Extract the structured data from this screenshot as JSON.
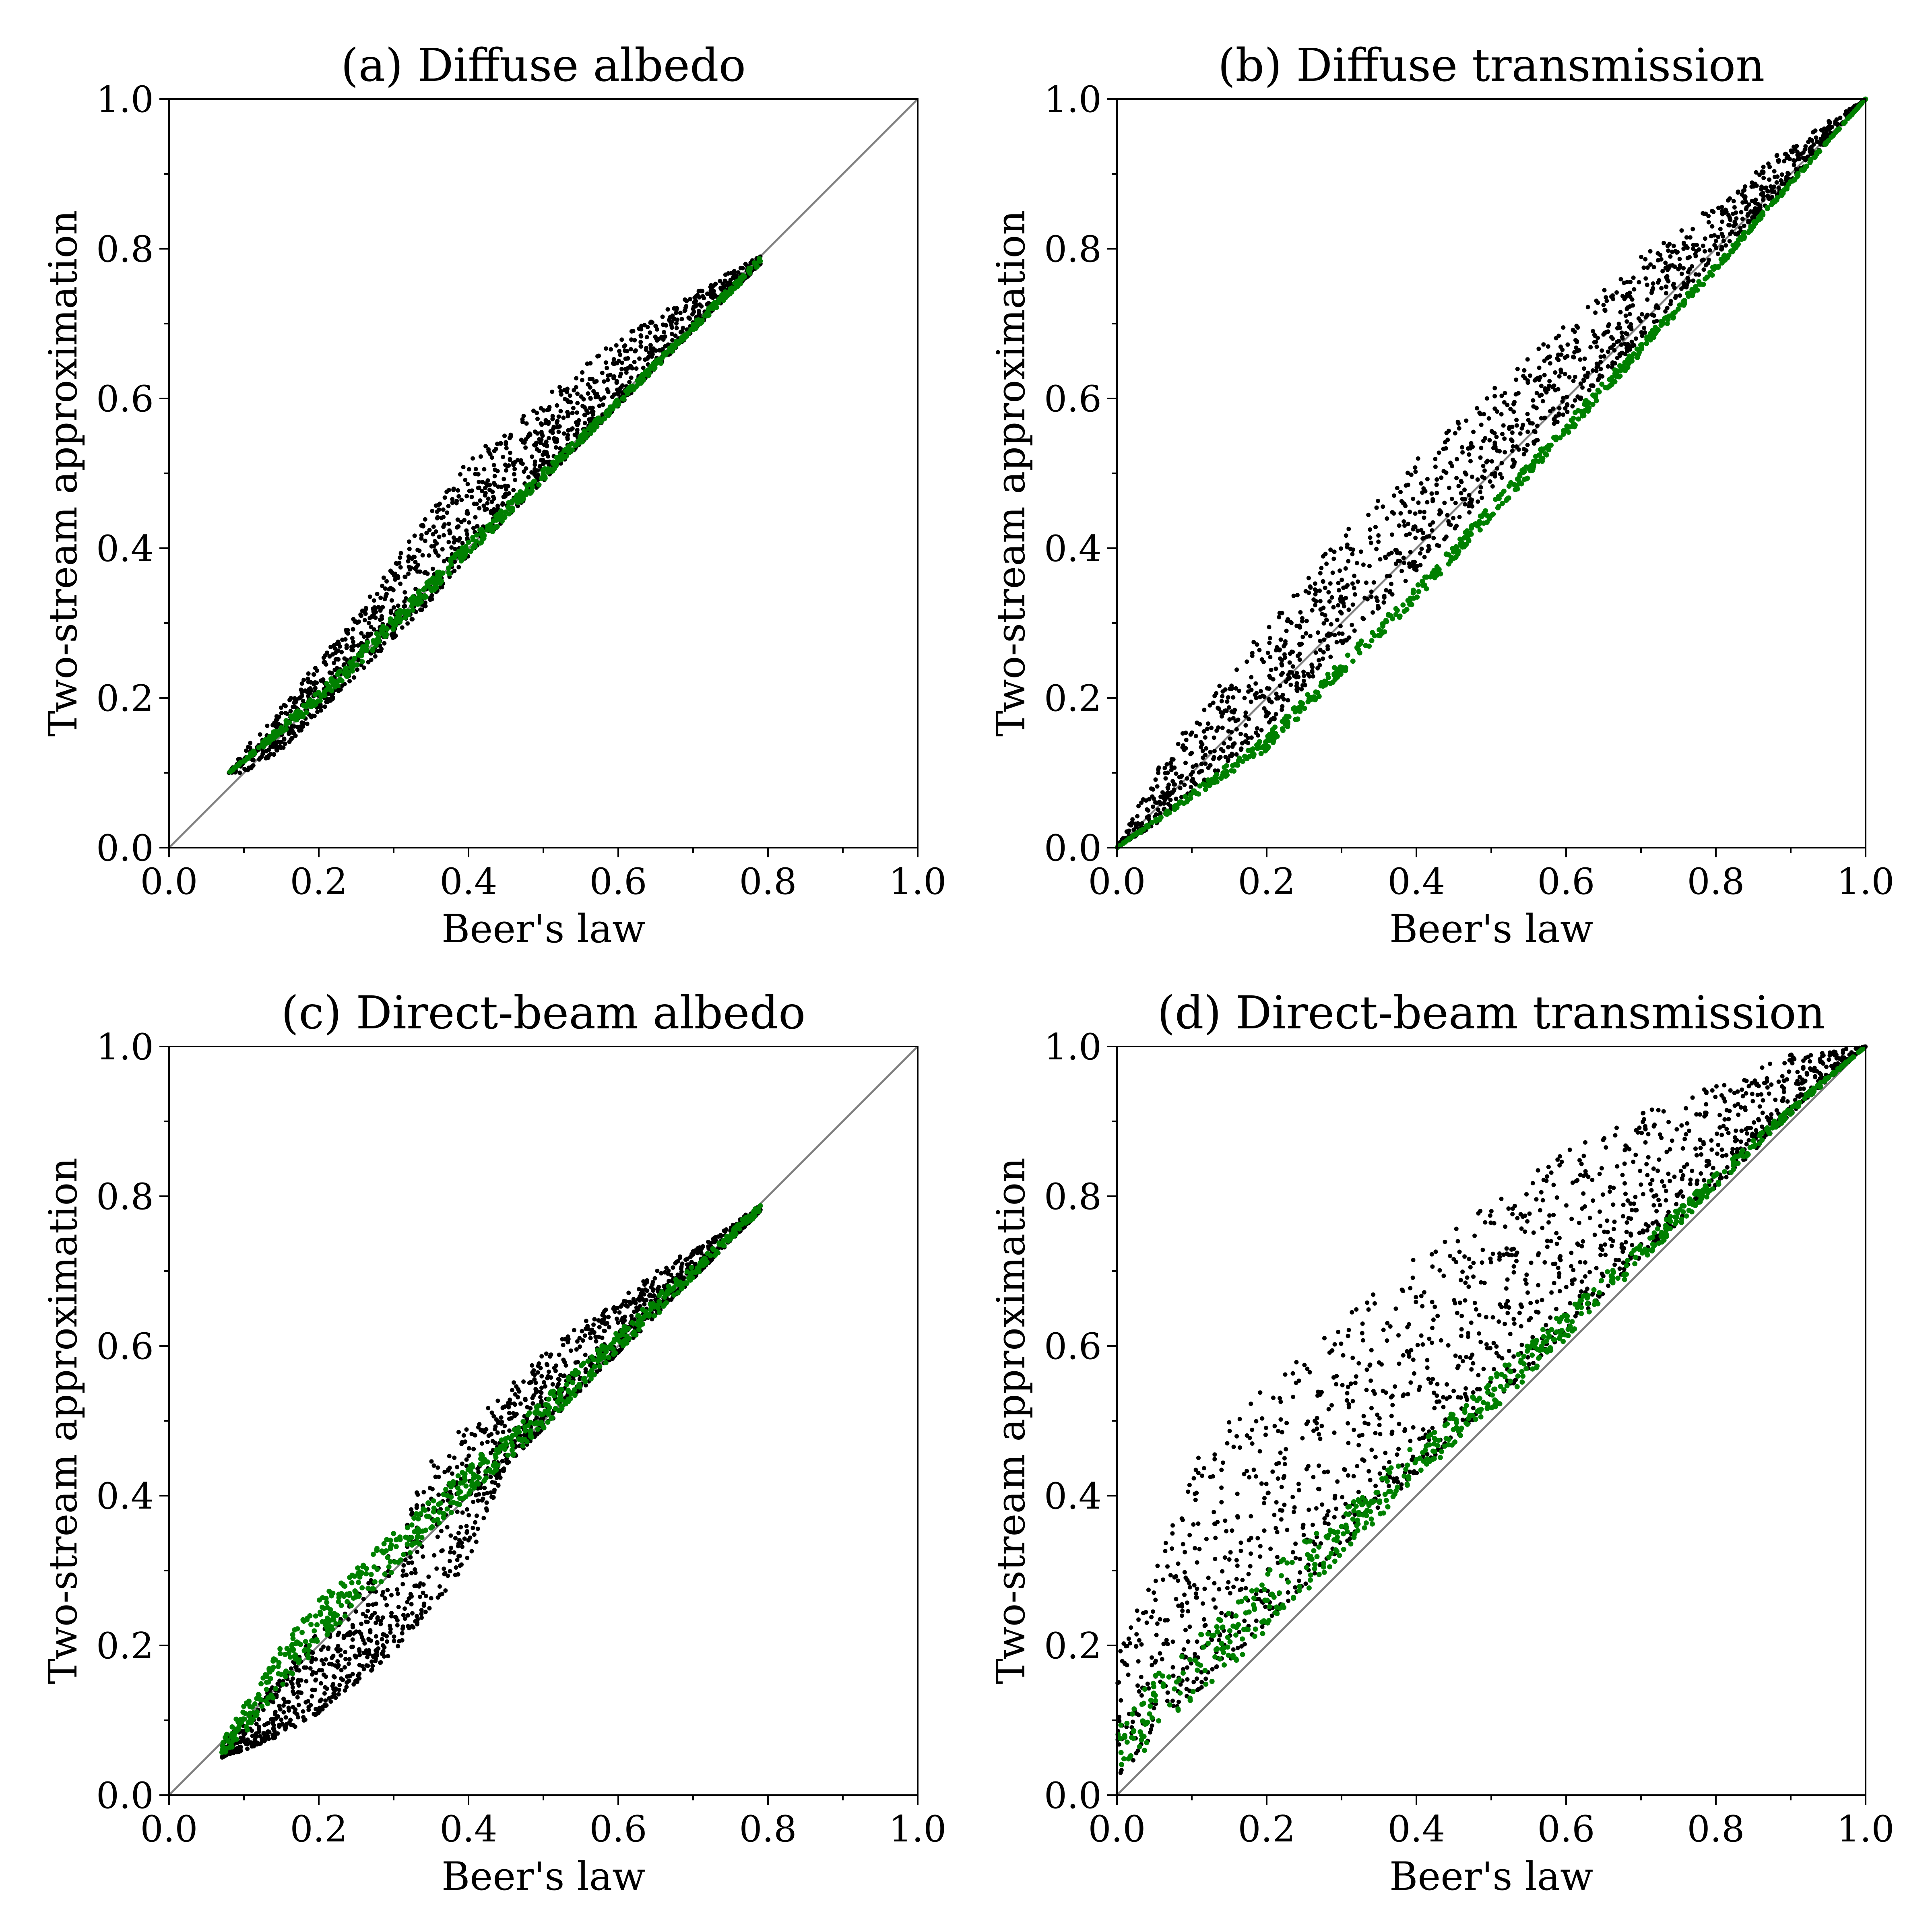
{
  "chart_data": [
    {
      "type": "scatter",
      "title": "(a) Diffuse albedo",
      "xlabel": "Beer's law",
      "ylabel": "Two-stream approximation",
      "xlim": [
        0.0,
        1.0
      ],
      "ylim": [
        0.0,
        1.0
      ],
      "x_ticks": [
        "0.0",
        "0.2",
        "0.4",
        "0.6",
        "0.8",
        "1.0"
      ],
      "y_ticks": [
        "0.0",
        "0.2",
        "0.4",
        "0.6",
        "0.8",
        "1.0"
      ],
      "grid": false,
      "reference_line": {
        "x": [
          0.0,
          1.0
        ],
        "y": [
          0.0,
          1.0
        ],
        "color": "#808080"
      },
      "series": [
        {
          "color": "#000000",
          "x_range": [
            0.08,
            0.79
          ],
          "envelope_x": [
            0.08,
            0.1,
            0.15,
            0.2,
            0.25,
            0.3,
            0.35,
            0.4,
            0.45,
            0.5,
            0.55,
            0.6,
            0.65,
            0.7,
            0.75,
            0.79
          ],
          "envelope_upper": [
            0.1,
            0.13,
            0.19,
            0.25,
            0.31,
            0.38,
            0.45,
            0.52,
            0.56,
            0.6,
            0.64,
            0.68,
            0.71,
            0.74,
            0.77,
            0.79
          ],
          "envelope_lower": [
            0.1,
            0.1,
            0.13,
            0.18,
            0.23,
            0.28,
            0.33,
            0.39,
            0.44,
            0.49,
            0.54,
            0.59,
            0.64,
            0.69,
            0.74,
            0.78
          ]
        },
        {
          "color": "#008000",
          "x_range": [
            0.08,
            0.79
          ],
          "envelope_x": [
            0.08,
            0.2,
            0.4,
            0.6,
            0.79
          ],
          "envelope_upper": [
            0.1,
            0.21,
            0.41,
            0.6,
            0.79
          ],
          "envelope_lower": [
            0.1,
            0.19,
            0.39,
            0.59,
            0.78
          ]
        }
      ]
    },
    {
      "type": "scatter",
      "title": "(b) Diffuse transmission",
      "xlabel": "Beer's law",
      "ylabel": "Two-stream approximation",
      "xlim": [
        0.0,
        1.0
      ],
      "ylim": [
        0.0,
        1.0
      ],
      "x_ticks": [
        "0.0",
        "0.2",
        "0.4",
        "0.6",
        "0.8",
        "1.0"
      ],
      "y_ticks": [
        "0.0",
        "0.2",
        "0.4",
        "0.6",
        "0.8",
        "1.0"
      ],
      "grid": false,
      "reference_line": {
        "x": [
          0.0,
          1.0
        ],
        "y": [
          0.0,
          1.0
        ],
        "color": "#808080"
      },
      "series": [
        {
          "color": "#000000",
          "x_range": [
            0.0,
            1.0
          ],
          "envelope_x": [
            0.0,
            0.05,
            0.1,
            0.2,
            0.3,
            0.4,
            0.5,
            0.6,
            0.7,
            0.8,
            0.9,
            1.0
          ],
          "envelope_upper": [
            0.0,
            0.1,
            0.17,
            0.3,
            0.42,
            0.52,
            0.61,
            0.7,
            0.79,
            0.86,
            0.94,
            1.0
          ],
          "envelope_lower": [
            0.0,
            0.03,
            0.07,
            0.16,
            0.27,
            0.37,
            0.48,
            0.58,
            0.68,
            0.79,
            0.89,
            1.0
          ]
        },
        {
          "color": "#008000",
          "x_range": [
            0.0,
            1.0
          ],
          "envelope_x": [
            0.0,
            0.2,
            0.4,
            0.6,
            0.8,
            1.0
          ],
          "envelope_upper": [
            0.0,
            0.15,
            0.35,
            0.57,
            0.78,
            1.0
          ],
          "envelope_lower": [
            0.0,
            0.13,
            0.33,
            0.55,
            0.77,
            1.0
          ]
        }
      ]
    },
    {
      "type": "scatter",
      "title": "(c) Direct-beam albedo",
      "xlabel": "Beer's law",
      "ylabel": "Two-stream approximation",
      "xlim": [
        0.0,
        1.0
      ],
      "ylim": [
        0.0,
        1.0
      ],
      "x_ticks": [
        "0.0",
        "0.2",
        "0.4",
        "0.6",
        "0.8",
        "1.0"
      ],
      "y_ticks": [
        "0.0",
        "0.2",
        "0.4",
        "0.6",
        "0.8",
        "1.0"
      ],
      "grid": false,
      "reference_line": {
        "x": [
          0.0,
          1.0
        ],
        "y": [
          0.0,
          1.0
        ],
        "color": "#808080"
      },
      "series": [
        {
          "color": "#000000",
          "x_range": [
            0.07,
            0.79
          ],
          "envelope_x": [
            0.07,
            0.1,
            0.15,
            0.2,
            0.25,
            0.3,
            0.35,
            0.4,
            0.45,
            0.5,
            0.55,
            0.6,
            0.65,
            0.7,
            0.75,
            0.79
          ],
          "envelope_upper": [
            0.07,
            0.1,
            0.16,
            0.22,
            0.27,
            0.33,
            0.46,
            0.5,
            0.55,
            0.59,
            0.63,
            0.66,
            0.7,
            0.73,
            0.76,
            0.79
          ],
          "envelope_lower": [
            0.05,
            0.06,
            0.08,
            0.11,
            0.15,
            0.19,
            0.25,
            0.31,
            0.44,
            0.49,
            0.54,
            0.59,
            0.64,
            0.69,
            0.74,
            0.78
          ]
        },
        {
          "color": "#008000",
          "x_range": [
            0.07,
            0.79
          ],
          "envelope_x": [
            0.07,
            0.1,
            0.15,
            0.2,
            0.3,
            0.4,
            0.5,
            0.6,
            0.7,
            0.79
          ],
          "envelope_upper": [
            0.07,
            0.12,
            0.2,
            0.26,
            0.35,
            0.44,
            0.53,
            0.62,
            0.71,
            0.79
          ],
          "envelope_lower": [
            0.05,
            0.08,
            0.14,
            0.2,
            0.3,
            0.4,
            0.49,
            0.59,
            0.69,
            0.78
          ]
        }
      ]
    },
    {
      "type": "scatter",
      "title": "(d) Direct-beam transmission",
      "xlabel": "Beer's law",
      "ylabel": "Two-stream approximation",
      "xlim": [
        0.0,
        1.0
      ],
      "ylim": [
        0.0,
        1.0
      ],
      "x_ticks": [
        "0.0",
        "0.2",
        "0.4",
        "0.6",
        "0.8",
        "1.0"
      ],
      "y_ticks": [
        "0.0",
        "0.2",
        "0.4",
        "0.6",
        "0.8",
        "1.0"
      ],
      "grid": false,
      "reference_line": {
        "x": [
          0.0,
          1.0
        ],
        "y": [
          0.0,
          1.0
        ],
        "color": "#808080"
      },
      "series": [
        {
          "color": "#000000",
          "x_range": [
            0.0,
            1.0
          ],
          "envelope_x": [
            0.0,
            0.05,
            0.1,
            0.2,
            0.3,
            0.4,
            0.5,
            0.6,
            0.7,
            0.8,
            0.9,
            1.0
          ],
          "envelope_upper": [
            0.18,
            0.33,
            0.44,
            0.56,
            0.64,
            0.72,
            0.8,
            0.86,
            0.91,
            0.95,
            0.99,
            1.0
          ],
          "envelope_lower": [
            0.02,
            0.08,
            0.13,
            0.23,
            0.33,
            0.43,
            0.52,
            0.62,
            0.72,
            0.81,
            0.91,
            1.0
          ]
        },
        {
          "color": "#008000",
          "x_range": [
            0.0,
            1.0
          ],
          "envelope_x": [
            0.0,
            0.05,
            0.1,
            0.2,
            0.3,
            0.4,
            0.5,
            0.6,
            0.7,
            0.8,
            0.9,
            1.0
          ],
          "envelope_upper": [
            0.09,
            0.16,
            0.21,
            0.3,
            0.38,
            0.47,
            0.56,
            0.65,
            0.74,
            0.83,
            0.92,
            1.0
          ],
          "envelope_lower": [
            0.02,
            0.07,
            0.12,
            0.22,
            0.32,
            0.42,
            0.51,
            0.61,
            0.71,
            0.81,
            0.91,
            1.0
          ]
        }
      ]
    }
  ]
}
